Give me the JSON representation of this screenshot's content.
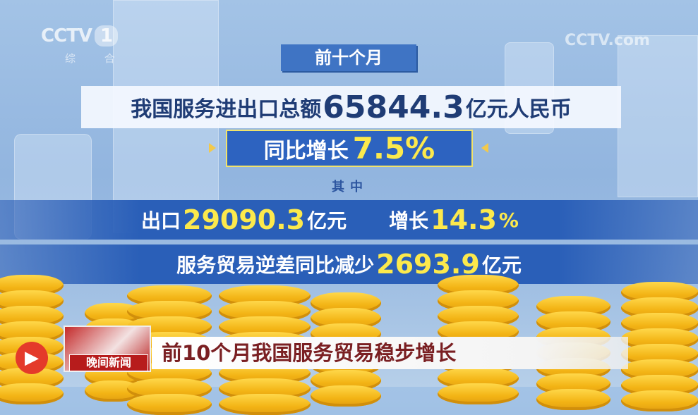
{
  "channel_logo": {
    "name": "CCTV",
    "number": "1",
    "sub": "综 合"
  },
  "watermark": "CCTV.com",
  "tag": "前十个月",
  "headline": {
    "prefix": "我国服务进出口总额",
    "value": "65844.3",
    "suffix": "亿元人民币"
  },
  "yoy": {
    "label": "同比增长",
    "value": "7.5%"
  },
  "among": "其中",
  "exports": {
    "label": "出口",
    "value": "29090.3",
    "unit": "亿元",
    "growth_label": "增长",
    "growth_value": "14.3",
    "growth_unit": "%"
  },
  "deficit": {
    "label": "服务贸易逆差同比减少",
    "value": "2693.9",
    "unit": "亿元"
  },
  "lower_third": {
    "program": "晚间新闻",
    "title": "前10个月我国服务贸易稳步增长"
  },
  "colors": {
    "accent_blue": "#2a5fb8",
    "highlight_yellow": "#fce94c",
    "title_red": "#7a1f22"
  }
}
